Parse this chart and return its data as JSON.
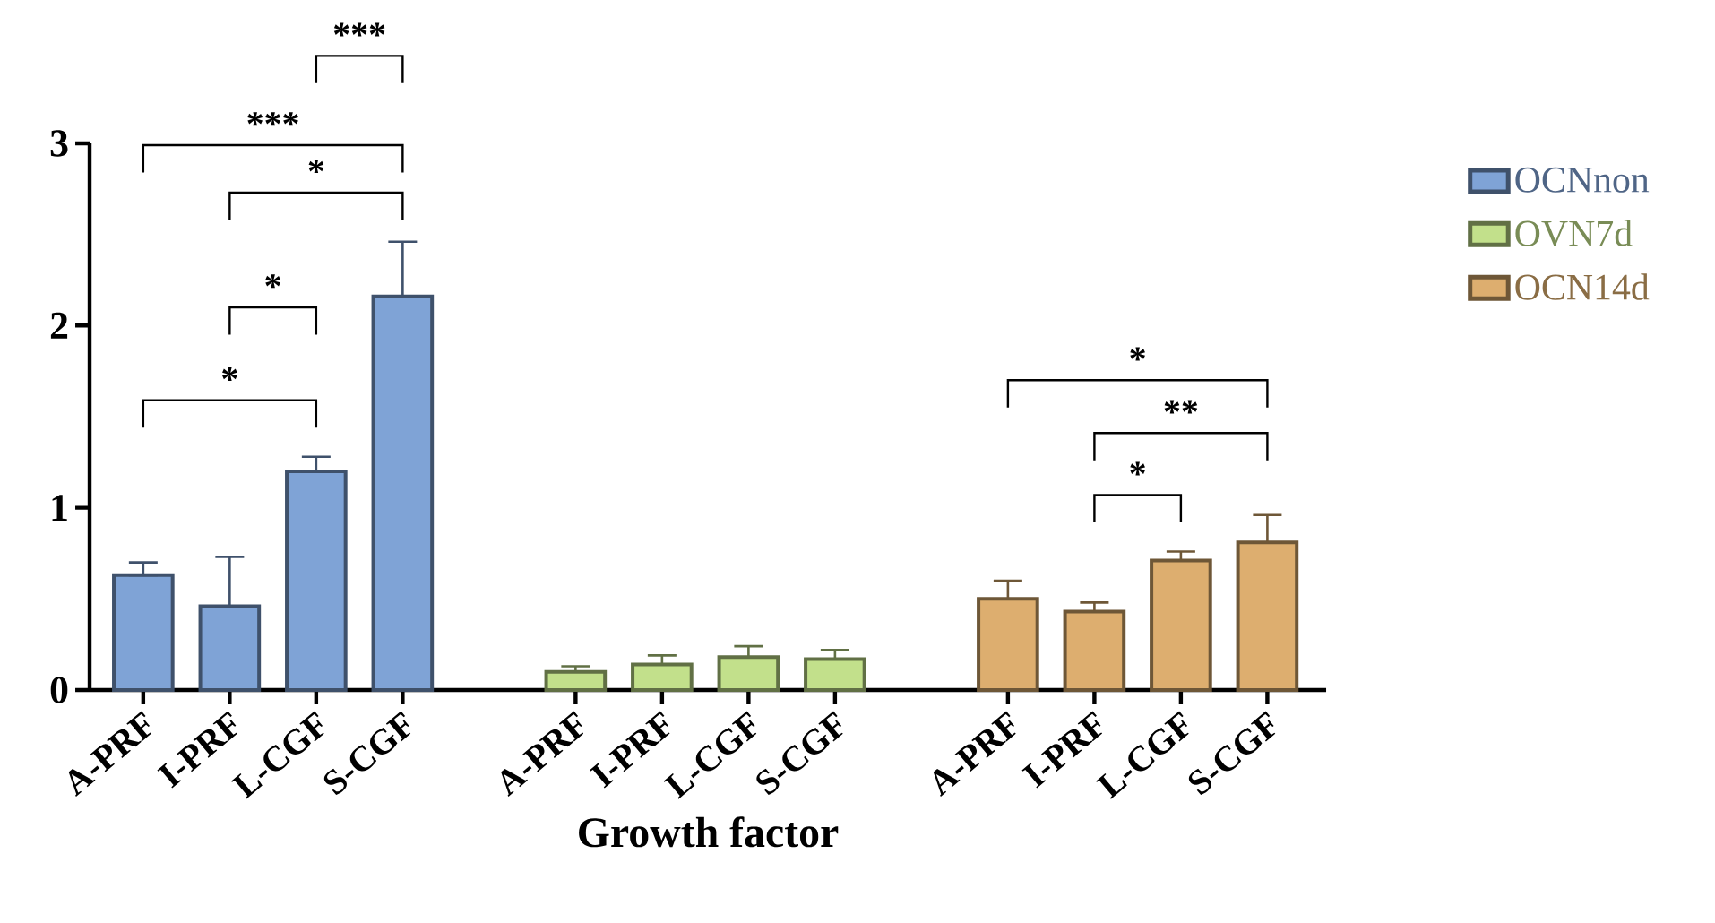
{
  "chart_data": {
    "type": "bar",
    "xlabel": "Growth factor",
    "categories": [
      "A-PRF",
      "I-PRF",
      "L-CGF",
      "S-CGF",
      null,
      "A-PRF",
      "I-PRF",
      "L-CGF",
      "S-CGF",
      null,
      "A-PRF",
      "I-PRF",
      "L-CGF",
      "S-CGF"
    ],
    "series": [
      {
        "name": "OCNnon",
        "color": "#7fa3d6",
        "values": [
          0.63,
          0.46,
          1.2,
          2.16,
          null,
          null,
          null,
          null,
          null,
          null,
          null,
          null,
          null,
          null
        ],
        "errors": [
          [
            0.63,
            0.7
          ],
          [
            0.46,
            0.73
          ],
          [
            1.2,
            1.28
          ],
          [
            2.16,
            2.46
          ],
          null,
          null,
          null,
          null,
          null,
          null,
          null,
          null,
          null,
          null
        ]
      },
      {
        "name": "OVN7d",
        "color": "#c2e08b",
        "values": [
          null,
          null,
          null,
          null,
          null,
          0.1,
          0.14,
          0.18,
          0.17,
          null,
          null,
          null,
          null,
          null
        ],
        "errors": [
          null,
          null,
          null,
          null,
          null,
          [
            0.1,
            0.13
          ],
          [
            0.14,
            0.19
          ],
          [
            0.18,
            0.24
          ],
          [
            0.17,
            0.22
          ],
          null,
          null,
          null,
          null,
          null
        ]
      },
      {
        "name": "OCN14d",
        "color": "#ddae6f",
        "values": [
          null,
          null,
          null,
          null,
          null,
          null,
          null,
          null,
          null,
          null,
          0.5,
          0.43,
          0.71,
          0.81
        ],
        "errors": [
          null,
          null,
          null,
          null,
          null,
          null,
          null,
          null,
          null,
          null,
          [
            0.5,
            0.6
          ],
          [
            0.43,
            0.48
          ],
          [
            0.71,
            0.76
          ],
          [
            0.81,
            0.96
          ]
        ]
      }
    ],
    "ylim": [
      0,
      3
    ],
    "yticks": [
      0,
      1,
      2,
      3
    ],
    "legend": "right",
    "annotations": [
      "***",
      "***",
      "*",
      "*",
      "*",
      "*",
      "**",
      "*"
    ]
  }
}
